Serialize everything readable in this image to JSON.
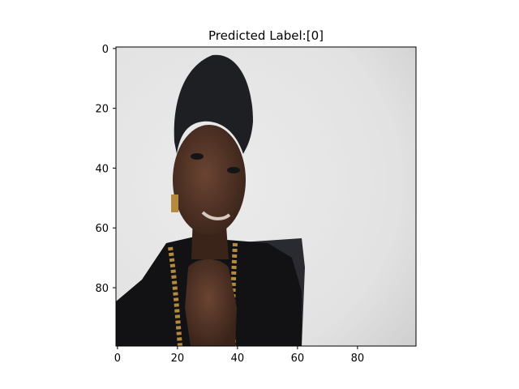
{
  "chart_data": {
    "type": "image",
    "title": "Predicted Label:[0]",
    "xlabel": "",
    "ylabel": "",
    "image_shape": [
      100,
      100
    ],
    "xlim": [
      -0.5,
      99.5
    ],
    "ylim": [
      99.5,
      -0.5
    ],
    "xticks": [
      0,
      20,
      40,
      60,
      80
    ],
    "yticks": [
      0,
      20,
      40,
      60,
      80
    ],
    "grid": false,
    "image_description_icon": "portrait-photo"
  },
  "colors": {
    "background": "#e4e4e4",
    "vignette": "#c9c9c9",
    "hair": "#1e1f22",
    "skin": "#4a2f22",
    "skin_highlight": "#6b4432",
    "clothing": "#121214",
    "chair": "#2a2b30",
    "necklace": "#b48a3e",
    "axis": "#000000"
  }
}
